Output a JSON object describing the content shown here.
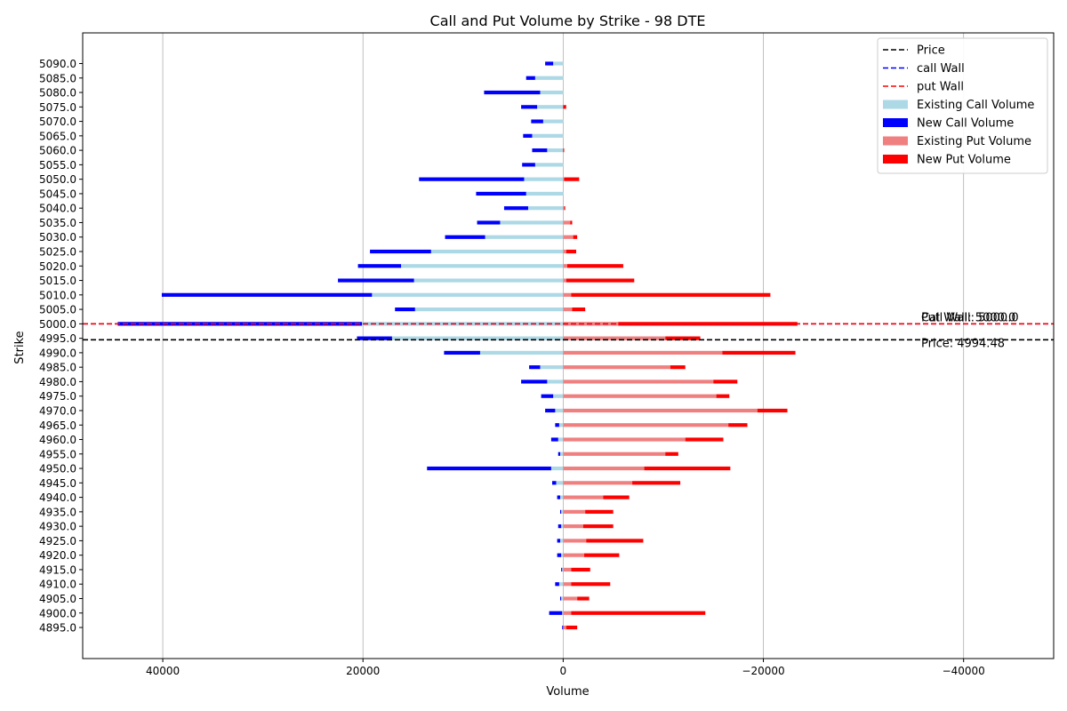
{
  "chart_data": {
    "type": "bar",
    "orientation": "horizontal",
    "title": "Call and Put Volume by Strike - 98 DTE",
    "xlabel": "Volume",
    "ylabel": "Strike",
    "xlim": [
      48000,
      -49000
    ],
    "x_inverted": true,
    "x_ticks": [
      40000,
      20000,
      0,
      -20000,
      -40000
    ],
    "x_tick_labels": [
      "40000",
      "20000",
      "0",
      "−20000",
      "−40000"
    ],
    "grid_x": true,
    "legend_position": "top-right",
    "strikes": [
      5090.0,
      5085.0,
      5080.0,
      5075.0,
      5070.0,
      5065.0,
      5060.0,
      5055.0,
      5050.0,
      5045.0,
      5040.0,
      5035.0,
      5030.0,
      5025.0,
      5020.0,
      5015.0,
      5010.0,
      5005.0,
      5000.0,
      4995.0,
      4990.0,
      4985.0,
      4980.0,
      4975.0,
      4970.0,
      4965.0,
      4960.0,
      4955.0,
      4950.0,
      4945.0,
      4940.0,
      4935.0,
      4930.0,
      4925.0,
      4920.0,
      4915.0,
      4910.0,
      4905.0,
      4900.0,
      4895.0
    ],
    "strike_labels": [
      "5090.0",
      "5085.0",
      "5080.0",
      "5075.0",
      "5070.0",
      "5065.0",
      "5060.0",
      "5055.0",
      "5050.0",
      "5045.0",
      "5040.0",
      "5035.0",
      "5030.0",
      "5025.0",
      "5020.0",
      "5015.0",
      "5010.0",
      "5005.0",
      "5000.0",
      "4995.0",
      "4990.0",
      "4985.0",
      "4980.0",
      "4975.0",
      "4970.0",
      "4965.0",
      "4960.0",
      "4955.0",
      "4950.0",
      "4945.0",
      "4940.0",
      "4935.0",
      "4930.0",
      "4925.0",
      "4920.0",
      "4915.0",
      "4910.0",
      "4905.0",
      "4900.0",
      "4895.0"
    ],
    "series": [
      {
        "name": "Existing Call Volume",
        "color": "#add8e6",
        "side": "call",
        "values": [
          1000,
          2800,
          2300,
          2600,
          2000,
          3100,
          1600,
          2800,
          3900,
          3700,
          3500,
          6300,
          7800,
          13200,
          16200,
          14900,
          19100,
          14800,
          20100,
          17100,
          8300,
          2300,
          1600,
          1000,
          800,
          400,
          500,
          300,
          1200,
          700,
          300,
          200,
          200,
          300,
          200,
          100,
          400,
          200,
          100,
          0
        ]
      },
      {
        "name": "New Call Volume",
        "color": "#0000ff",
        "side": "call",
        "values": [
          800,
          900,
          5600,
          1600,
          1200,
          900,
          1500,
          1300,
          10500,
          5000,
          2400,
          2300,
          4000,
          6100,
          4300,
          7600,
          21000,
          2000,
          24400,
          3500,
          3600,
          1100,
          2600,
          1200,
          1000,
          400,
          700,
          200,
          12400,
          400,
          300,
          100,
          300,
          300,
          400,
          100,
          400,
          100,
          1300,
          100
        ]
      },
      {
        "name": "Existing Put Volume",
        "color": "#f08080",
        "side": "put",
        "values": [
          0,
          0,
          0,
          0,
          0,
          0,
          0,
          0,
          100,
          0,
          100,
          700,
          1000,
          300,
          400,
          300,
          800,
          900,
          5500,
          10200,
          15900,
          10700,
          15000,
          15300,
          19400,
          16500,
          12200,
          10200,
          8100,
          6900,
          4000,
          2200,
          2000,
          2300,
          2100,
          800,
          800,
          1400,
          800,
          300
        ]
      },
      {
        "name": "New Put Volume",
        "color": "#ff0000",
        "side": "put",
        "values": [
          0,
          0,
          0,
          300,
          0,
          0,
          100,
          0,
          1500,
          0,
          100,
          200,
          400,
          1000,
          5600,
          6800,
          19900,
          1300,
          17900,
          3500,
          7300,
          1500,
          2400,
          1300,
          3000,
          1900,
          3800,
          1300,
          8600,
          4800,
          2600,
          2800,
          3000,
          5700,
          3500,
          1900,
          3900,
          1200,
          13400,
          1100
        ]
      }
    ],
    "reference_lines": [
      {
        "name": "Price",
        "color": "#000000",
        "value": 4994.48,
        "annotation": "Price: 4994.48"
      },
      {
        "name": "call Wall",
        "color": "#0000ff",
        "value": 5000.0,
        "annotation": "Call Wall: 5000.0"
      },
      {
        "name": "put Wall",
        "color": "#ff0000",
        "value": 5000.0,
        "annotation": "Put Wall: 5000.0"
      }
    ],
    "legend": [
      "Price",
      "call Wall",
      "put Wall",
      "Existing Call Volume",
      "New Call Volume",
      "Existing Put Volume",
      "New Put Volume"
    ]
  }
}
